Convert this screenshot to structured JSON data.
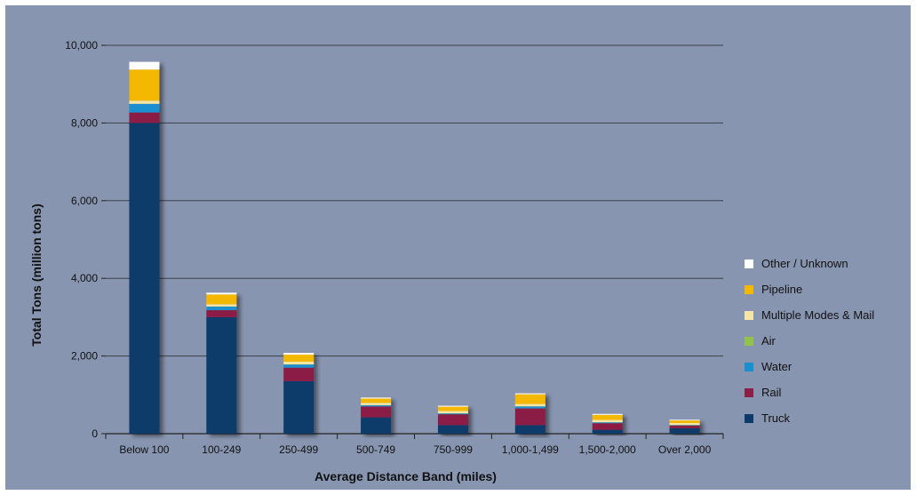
{
  "chart_data": {
    "type": "bar",
    "stacked": true,
    "title": "",
    "xlabel": "Average Distance Band (miles)",
    "ylabel": "Total Tons (million tons)",
    "ylim": [
      0,
      10000
    ],
    "yticks": [
      0,
      2000,
      4000,
      6000,
      8000,
      10000
    ],
    "ytick_labels": [
      "0",
      "2,000",
      "4,000",
      "6,000",
      "8,000",
      "10,000"
    ],
    "grid": true,
    "legend_position": "right",
    "categories": [
      "Below 100",
      "100-249",
      "250-499",
      "500-749",
      "750-999",
      "1,000-1,499",
      "1,500-2,000",
      "Over 2,000"
    ],
    "series": [
      {
        "name": "Truck",
        "color": "#0b3a6b",
        "values": [
          8000,
          3000,
          1350,
          420,
          220,
          220,
          100,
          140
        ]
      },
      {
        "name": "Rail",
        "color": "#8b1e45",
        "values": [
          270,
          180,
          350,
          280,
          280,
          430,
          170,
          70
        ]
      },
      {
        "name": "Water",
        "color": "#1a8fd0",
        "values": [
          220,
          90,
          80,
          30,
          20,
          50,
          20,
          10
        ]
      },
      {
        "name": "Air",
        "color": "#8fc34a",
        "values": [
          5,
          5,
          5,
          5,
          5,
          5,
          5,
          5
        ]
      },
      {
        "name": "Multiple Modes & Mail",
        "color": "#f5e6a8",
        "values": [
          80,
          60,
          70,
          60,
          60,
          60,
          60,
          50
        ]
      },
      {
        "name": "Pipeline",
        "color": "#f5b800",
        "values": [
          800,
          250,
          180,
          110,
          110,
          250,
          130,
          65
        ]
      },
      {
        "name": "Other / Unknown",
        "color": "#ffffff",
        "values": [
          200,
          45,
          45,
          25,
          25,
          25,
          25,
          20
        ]
      }
    ]
  }
}
